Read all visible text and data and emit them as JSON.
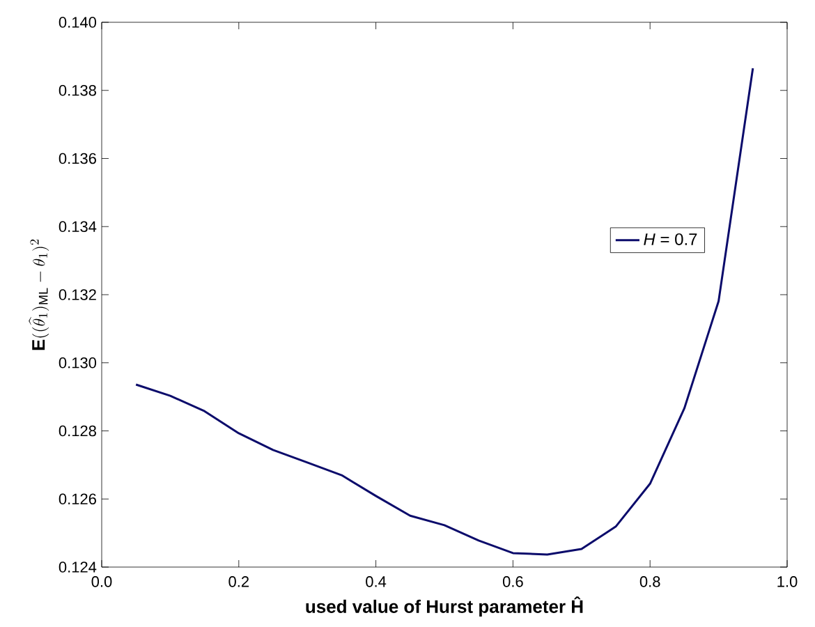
{
  "chart_data": {
    "type": "line",
    "xlabel": "used value of Hurst parameter Ĥ",
    "ylabel": "\\mathbf{E}((\\widehat{\\theta}_1)_{\\mathrm{ML}} - \\theta_1)^2",
    "x": [
      0.05,
      0.1,
      0.15,
      0.2,
      0.25,
      0.3,
      0.35,
      0.4,
      0.45,
      0.5,
      0.55,
      0.6,
      0.65,
      0.7,
      0.75,
      0.8,
      0.85,
      0.9,
      0.95
    ],
    "series": [
      {
        "name": "*H* = 0.7",
        "color": "#0b0b6b",
        "values": [
          0.12936,
          0.12903,
          0.12858,
          0.12793,
          0.12744,
          0.12707,
          0.1267,
          0.12609,
          0.12551,
          0.12523,
          0.12478,
          0.12441,
          0.12437,
          0.12453,
          0.12519,
          0.12645,
          0.12866,
          0.13181,
          0.13865
        ]
      }
    ],
    "xlim": [
      0,
      1
    ],
    "ylim": [
      0.124,
      0.14
    ],
    "xticks": [
      {
        "value": 0,
        "label": "0.0"
      },
      {
        "value": 0.2,
        "label": "0.2"
      },
      {
        "value": 0.4,
        "label": "0.4"
      },
      {
        "value": 0.6,
        "label": "0.6"
      },
      {
        "value": 0.8,
        "label": "0.8"
      },
      {
        "value": 1,
        "label": "1.0"
      }
    ],
    "yticks": [
      {
        "value": 0.124,
        "label": "0.124"
      },
      {
        "value": 0.126,
        "label": "0.126"
      },
      {
        "value": 0.128,
        "label": "0.128"
      },
      {
        "value": 0.13,
        "label": "0.130"
      },
      {
        "value": 0.132,
        "label": "0.132"
      },
      {
        "value": 0.134,
        "label": "0.134"
      },
      {
        "value": 0.136,
        "label": "0.136"
      },
      {
        "value": 0.138,
        "label": "0.138"
      },
      {
        "value": 0.14,
        "label": "0.140"
      }
    ],
    "legend": "right",
    "grid": false,
    "marker": "none",
    "line_style": "solid"
  }
}
